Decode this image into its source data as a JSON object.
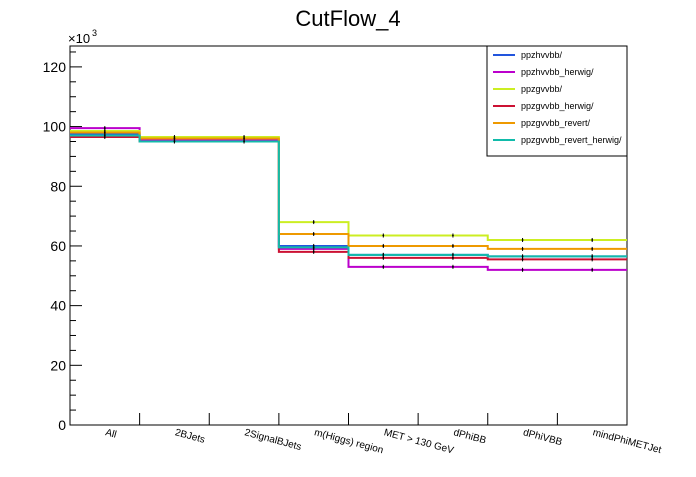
{
  "chart_data": {
    "type": "line",
    "title": "CutFlow_4",
    "y_multiplier_label": "×10",
    "y_multiplier_exp": "3",
    "categories": [
      "All",
      "2BJets",
      "2SignalBJets",
      "m(Higgs) region",
      "MET > 130 GeV",
      "dPhiBB",
      "dPhiVBB",
      "mindPhiMETJet"
    ],
    "ylim": [
      0,
      127
    ],
    "y_ticks": [
      0,
      20,
      40,
      60,
      80,
      100,
      120
    ],
    "y_tick_labels": [
      "0",
      "20",
      "40",
      "60",
      "80",
      "100",
      "120"
    ],
    "legend_position": "top-right",
    "series": [
      {
        "name": "ppzhvvbb/",
        "color": "#2255dd",
        "values": [
          97.5,
          95.5,
          95.5,
          60.0,
          57.0,
          57.0,
          56.5,
          56.5
        ]
      },
      {
        "name": "ppzhvvbb_herwig/",
        "color": "#bb00cc",
        "values": [
          99.5,
          95.5,
          95.5,
          59.0,
          53.0,
          53.0,
          52.0,
          52.0
        ]
      },
      {
        "name": "ppzgvvbb/",
        "color": "#ccee22",
        "values": [
          98.5,
          96.5,
          96.5,
          68.0,
          63.5,
          63.5,
          62.0,
          62.0
        ]
      },
      {
        "name": "ppzgvvbb_herwig/",
        "color": "#cc1133",
        "values": [
          96.5,
          95.0,
          95.0,
          58.0,
          56.0,
          56.0,
          55.5,
          55.5
        ]
      },
      {
        "name": "ppzgvvbb_revert/",
        "color": "#ee9900",
        "values": [
          98.0,
          96.0,
          96.0,
          64.0,
          60.0,
          60.0,
          59.0,
          59.0
        ]
      },
      {
        "name": "ppzgvvbb_revert_herwig/",
        "color": "#11bbaa",
        "values": [
          97.0,
          95.0,
          95.0,
          59.5,
          57.0,
          57.0,
          56.5,
          56.5
        ]
      }
    ]
  }
}
